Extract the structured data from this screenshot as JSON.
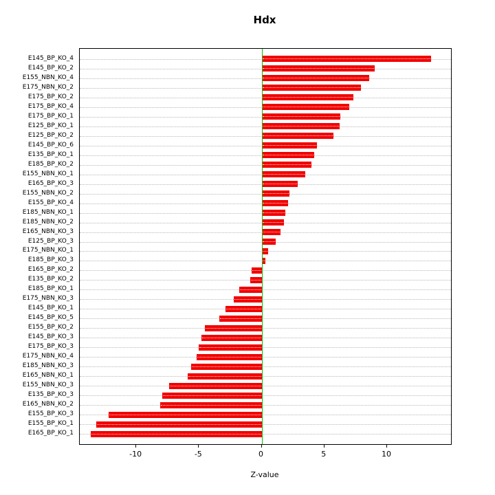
{
  "chart_data": {
    "type": "bar",
    "orientation": "horizontal",
    "title": "Hdx",
    "xlabel": "Z-value",
    "xlim": [
      -14.5,
      15.1
    ],
    "xticks": [
      -10,
      -5,
      0,
      5,
      10
    ],
    "grid": "dotted-horizontal",
    "bar_color": "#f20000",
    "zero_line_color": "#00c000",
    "categories": [
      "E145_BP_KO_4",
      "E145_BP_KO_2",
      "E155_NBN_KO_4",
      "E175_NBN_KO_2",
      "E175_BP_KO_2",
      "E175_BP_KO_4",
      "E175_BP_KO_1",
      "E125_BP_KO_1",
      "E125_BP_KO_2",
      "E145_BP_KO_6",
      "E135_BP_KO_1",
      "E185_BP_KO_2",
      "E155_NBN_KO_1",
      "E165_BP_KO_3",
      "E155_NBN_KO_2",
      "E155_BP_KO_4",
      "E185_NBN_KO_1",
      "E185_NBN_KO_2",
      "E165_NBN_KO_3",
      "E125_BP_KO_3",
      "E175_NBN_KO_1",
      "E185_BP_KO_3",
      "E165_BP_KO_2",
      "E135_BP_KO_2",
      "E185_BP_KO_1",
      "E175_NBN_KO_3",
      "E145_BP_KO_1",
      "E145_BP_KO_5",
      "E155_BP_KO_2",
      "E145_BP_KO_3",
      "E175_BP_KO_3",
      "E175_NBN_KO_4",
      "E185_NBN_KO_3",
      "E165_NBN_KO_1",
      "E155_NBN_KO_3",
      "E135_BP_KO_3",
      "E165_NBN_KO_2",
      "E155_BP_KO_3",
      "E155_BP_KO_1",
      "E165_BP_KO_1"
    ],
    "values": [
      13.5,
      9.0,
      8.6,
      7.9,
      7.3,
      7.0,
      6.3,
      6.2,
      5.7,
      4.4,
      4.2,
      4.0,
      3.5,
      2.9,
      2.2,
      2.1,
      1.9,
      1.8,
      1.5,
      1.1,
      0.5,
      0.3,
      -0.8,
      -0.9,
      -1.8,
      -2.2,
      -2.9,
      -3.4,
      -4.5,
      -4.8,
      -5.0,
      -5.2,
      -5.6,
      -5.9,
      -7.4,
      -7.9,
      -8.1,
      -12.2,
      -13.2,
      -13.6
    ]
  }
}
